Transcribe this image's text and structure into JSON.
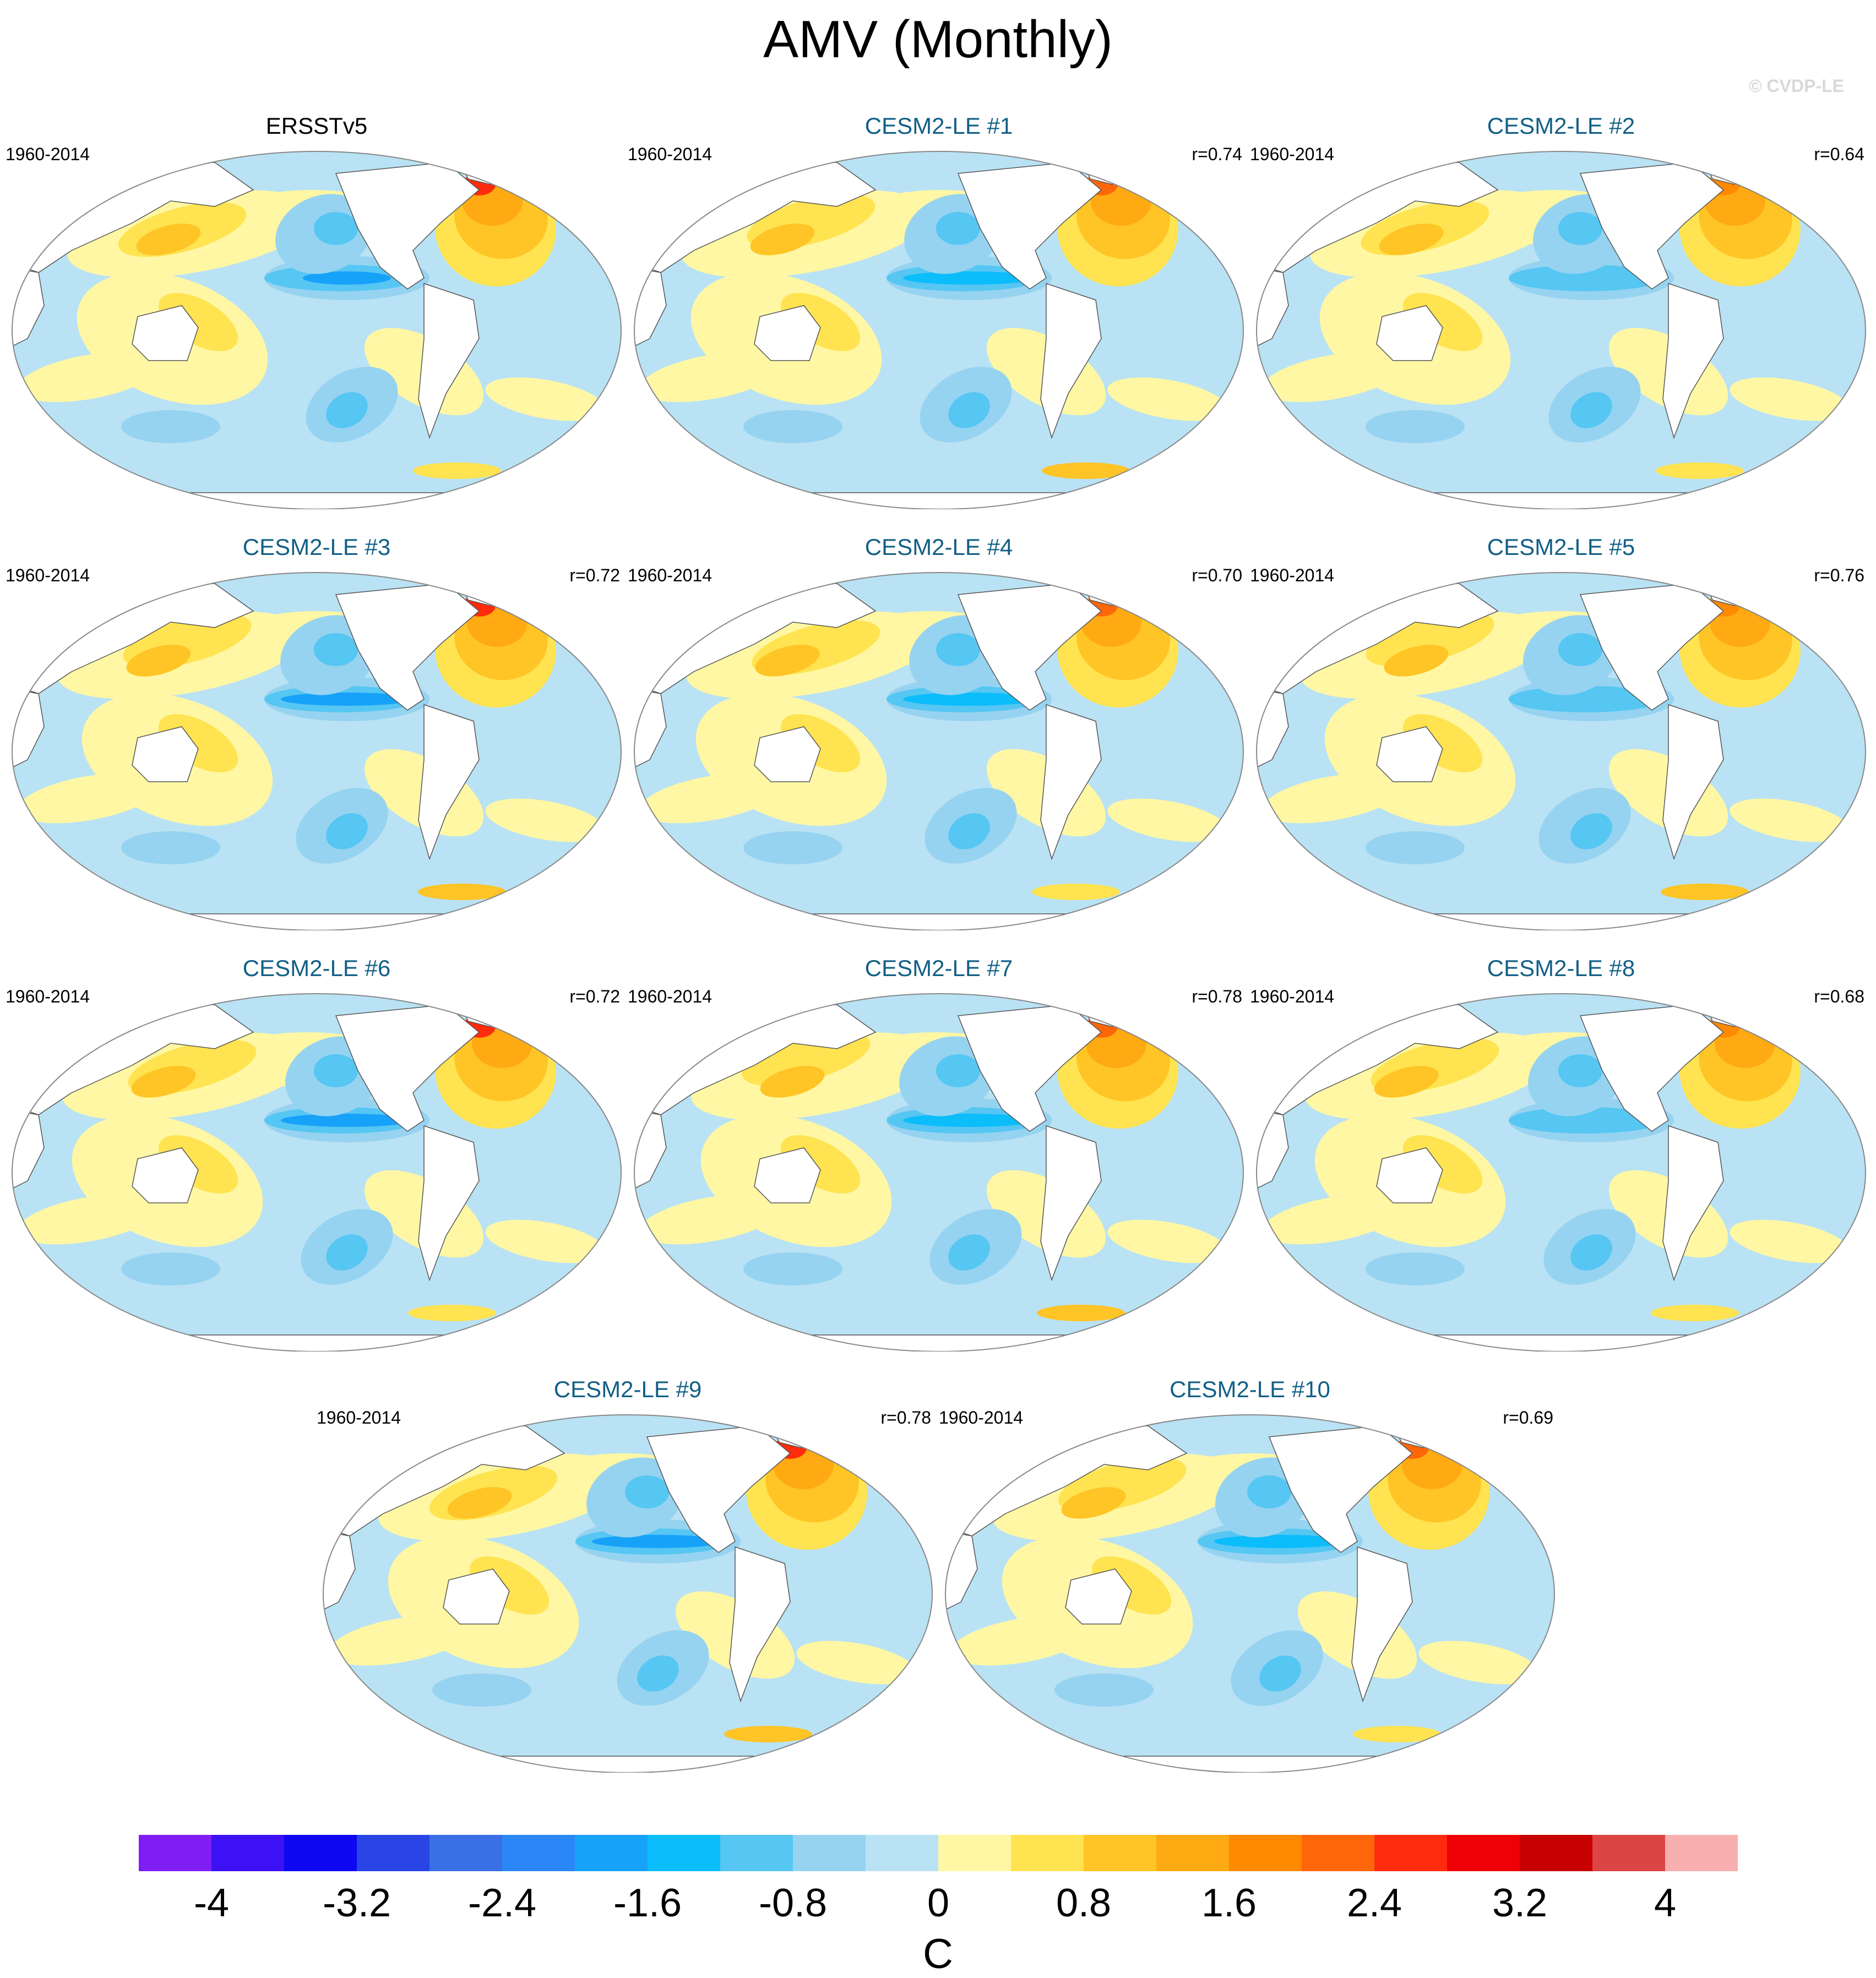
{
  "title": "AMV (Monthly)",
  "watermark": "© CVDP-LE",
  "colors": {
    "title_model": "#125f86",
    "land": "#ffffff",
    "coast": "#555555"
  },
  "panels": [
    {
      "name": "ERSSTv5",
      "period": "1960-2014",
      "r": "",
      "obs": true
    },
    {
      "name": "CESM2-LE #1",
      "period": "1960-2014",
      "r": "r=0.74"
    },
    {
      "name": "CESM2-LE #2",
      "period": "1960-2014",
      "r": "r=0.64"
    },
    {
      "name": "CESM2-LE #3",
      "period": "1960-2014",
      "r": "r=0.72"
    },
    {
      "name": "CESM2-LE #4",
      "period": "1960-2014",
      "r": "r=0.70"
    },
    {
      "name": "CESM2-LE #5",
      "period": "1960-2014",
      "r": "r=0.76"
    },
    {
      "name": "CESM2-LE #6",
      "period": "1960-2014",
      "r": "r=0.72"
    },
    {
      "name": "CESM2-LE #7",
      "period": "1960-2014",
      "r": "r=0.78"
    },
    {
      "name": "CESM2-LE #8",
      "period": "1960-2014",
      "r": "r=0.68"
    },
    {
      "name": "CESM2-LE #9",
      "period": "1960-2014",
      "r": "r=0.78"
    },
    {
      "name": "CESM2-LE #10",
      "period": "1960-2014",
      "r": "r=0.69"
    }
  ],
  "colorbar": {
    "colors": [
      "#7f1df5",
      "#3d11f5",
      "#0d07f2",
      "#2a45e6",
      "#3a6fe6",
      "#2b87f6",
      "#17a2f9",
      "#0bbdfa",
      "#56c6f3",
      "#96d3f0",
      "#b9e2f4",
      "#fff7a4",
      "#ffe350",
      "#ffc425",
      "#ffaa12",
      "#ff8a00",
      "#ff6609",
      "#ff2b0c",
      "#ef0006",
      "#c70000",
      "#dd4444",
      "#f8afaf"
    ],
    "labels": [
      "-4",
      "-3.2",
      "-2.4",
      "-1.6",
      "-0.8",
      "0",
      "0.8",
      "1.6",
      "2.4",
      "3.2",
      "4"
    ],
    "units": "C"
  }
}
